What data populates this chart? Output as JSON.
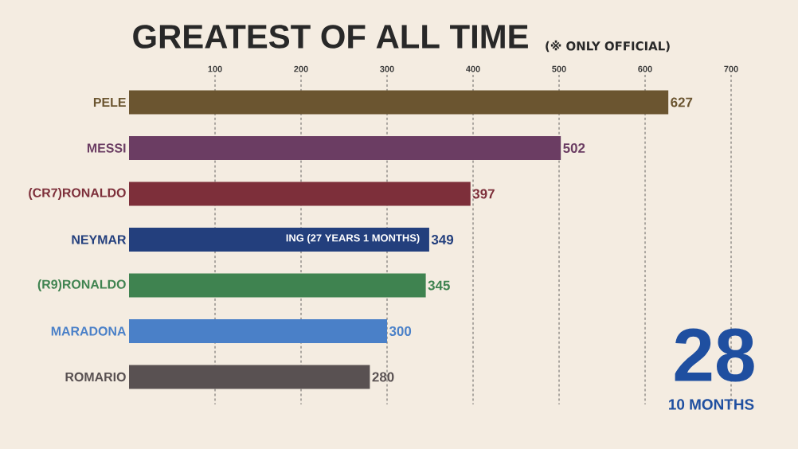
{
  "chart_data": {
    "type": "bar",
    "orientation": "horizontal",
    "title": "GREATEST OF ALL TIME",
    "subtitle": "(※ ONLY OFFICIAL)",
    "categories": [
      "PELE",
      "MESSI",
      "(CR7)RONALDO",
      "NEYMAR",
      "(R9)RONALDO",
      "MARADONA",
      "ROMARIO"
    ],
    "values": [
      627,
      502,
      397,
      349,
      345,
      300,
      280
    ],
    "colors": [
      "#6b5530",
      "#6b3d63",
      "#7d2f3a",
      "#233f7d",
      "#3f8350",
      "#4a80c8",
      "#595152"
    ],
    "xlim": [
      0,
      700
    ],
    "xticks": [
      100,
      200,
      300,
      400,
      500,
      600,
      700
    ],
    "grid": "x",
    "data_labels": true,
    "annotations": [
      "ING (27 YEARS 1 MONTHS)",
      "28",
      "10 MONTHS"
    ]
  }
}
